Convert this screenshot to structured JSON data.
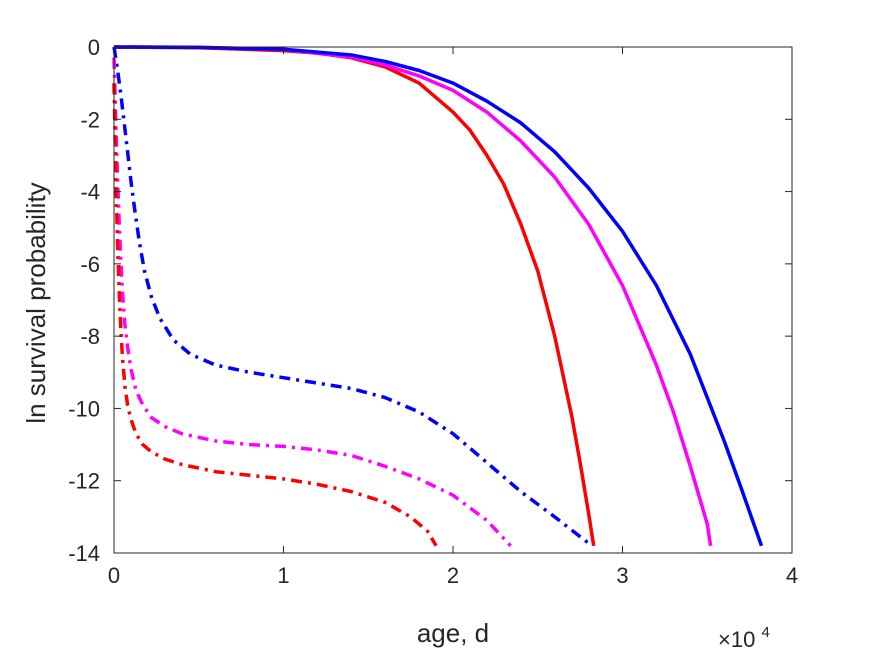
{
  "chart_data": {
    "type": "line",
    "xlabel": "age, d",
    "ylabel": "ln survival probability",
    "x_multiplier_label": "×10",
    "x_multiplier_exponent": "4",
    "xlim": [
      0,
      40000
    ],
    "ylim": [
      -14,
      0
    ],
    "xticks": [
      0,
      10000,
      20000,
      30000,
      40000
    ],
    "xtick_labels": [
      "0",
      "1",
      "2",
      "3",
      "4"
    ],
    "yticks": [
      0,
      -2,
      -4,
      -6,
      -8,
      -10,
      -12,
      -14
    ],
    "ytick_labels": [
      "0",
      "-2",
      "-4",
      "-6",
      "-8",
      "-10",
      "-12",
      "-14"
    ],
    "grid": false,
    "series": [
      {
        "color": "#ff0000",
        "style": "solid",
        "points": [
          [
            0,
            0
          ],
          [
            5000,
            -0.02
          ],
          [
            10000,
            -0.1
          ],
          [
            12000,
            -0.17
          ],
          [
            14000,
            -0.3
          ],
          [
            16000,
            -0.55
          ],
          [
            18000,
            -1.0
          ],
          [
            20000,
            -1.8
          ],
          [
            21000,
            -2.3
          ],
          [
            22000,
            -3.0
          ],
          [
            23000,
            -3.8
          ],
          [
            24000,
            -4.9
          ],
          [
            25000,
            -6.2
          ],
          [
            26000,
            -8.0
          ],
          [
            27000,
            -10.2
          ],
          [
            27500,
            -11.5
          ],
          [
            28000,
            -12.9
          ],
          [
            28300,
            -13.8
          ]
        ]
      },
      {
        "color": "#ff00ff",
        "style": "solid",
        "points": [
          [
            0,
            0
          ],
          [
            5000,
            -0.01
          ],
          [
            10000,
            -0.07
          ],
          [
            14000,
            -0.28
          ],
          [
            16000,
            -0.5
          ],
          [
            18000,
            -0.8
          ],
          [
            20000,
            -1.2
          ],
          [
            22000,
            -1.8
          ],
          [
            24000,
            -2.6
          ],
          [
            26000,
            -3.6
          ],
          [
            28000,
            -4.9
          ],
          [
            30000,
            -6.6
          ],
          [
            32000,
            -8.8
          ],
          [
            33000,
            -10.1
          ],
          [
            34000,
            -11.6
          ],
          [
            35000,
            -13.2
          ],
          [
            35200,
            -13.8
          ]
        ]
      },
      {
        "color": "#0000ff",
        "style": "solid",
        "points": [
          [
            0,
            0
          ],
          [
            5000,
            -0.01
          ],
          [
            10000,
            -0.06
          ],
          [
            14000,
            -0.22
          ],
          [
            16000,
            -0.4
          ],
          [
            18000,
            -0.65
          ],
          [
            20000,
            -1.0
          ],
          [
            22000,
            -1.5
          ],
          [
            24000,
            -2.1
          ],
          [
            26000,
            -2.9
          ],
          [
            28000,
            -3.9
          ],
          [
            30000,
            -5.1
          ],
          [
            32000,
            -6.6
          ],
          [
            34000,
            -8.5
          ],
          [
            36000,
            -10.9
          ],
          [
            37000,
            -12.2
          ],
          [
            38200,
            -13.8
          ]
        ]
      },
      {
        "color": "#0000ff",
        "style": "dashdot",
        "points": [
          [
            0,
            0
          ],
          [
            200,
            -0.6
          ],
          [
            400,
            -1.3
          ],
          [
            600,
            -2.1
          ],
          [
            800,
            -2.9
          ],
          [
            1000,
            -3.7
          ],
          [
            1250,
            -4.6
          ],
          [
            1500,
            -5.4
          ],
          [
            1800,
            -6.2
          ],
          [
            2200,
            -6.9
          ],
          [
            2700,
            -7.5
          ],
          [
            3500,
            -8.1
          ],
          [
            4500,
            -8.5
          ],
          [
            6000,
            -8.8
          ],
          [
            8000,
            -9.0
          ],
          [
            10000,
            -9.15
          ],
          [
            12000,
            -9.3
          ],
          [
            14000,
            -9.45
          ],
          [
            16000,
            -9.7
          ],
          [
            18000,
            -10.1
          ],
          [
            20000,
            -10.7
          ],
          [
            22000,
            -11.5
          ],
          [
            24000,
            -12.3
          ],
          [
            26000,
            -13.0
          ],
          [
            28200,
            -13.8
          ]
        ]
      },
      {
        "color": "#ff00ff",
        "style": "dashdot",
        "points": [
          [
            0,
            -0.3
          ],
          [
            100,
            -2.0
          ],
          [
            200,
            -3.5
          ],
          [
            300,
            -4.8
          ],
          [
            400,
            -5.9
          ],
          [
            500,
            -6.8
          ],
          [
            650,
            -7.7
          ],
          [
            800,
            -8.3
          ],
          [
            1000,
            -8.9
          ],
          [
            1300,
            -9.5
          ],
          [
            1700,
            -9.9
          ],
          [
            2200,
            -10.25
          ],
          [
            3000,
            -10.5
          ],
          [
            4000,
            -10.7
          ],
          [
            6000,
            -10.9
          ],
          [
            8000,
            -11.0
          ],
          [
            10000,
            -11.05
          ],
          [
            12000,
            -11.15
          ],
          [
            14000,
            -11.3
          ],
          [
            16000,
            -11.6
          ],
          [
            18000,
            -11.95
          ],
          [
            20000,
            -12.4
          ],
          [
            22000,
            -13.1
          ],
          [
            23400,
            -13.8
          ]
        ]
      },
      {
        "color": "#ff0000",
        "style": "dashdot",
        "points": [
          [
            0,
            -1.0
          ],
          [
            100,
            -3.5
          ],
          [
            200,
            -5.3
          ],
          [
            300,
            -6.7
          ],
          [
            400,
            -7.8
          ],
          [
            500,
            -8.6
          ],
          [
            650,
            -9.4
          ],
          [
            800,
            -9.9
          ],
          [
            1000,
            -10.3
          ],
          [
            1300,
            -10.7
          ],
          [
            1700,
            -11.0
          ],
          [
            2200,
            -11.2
          ],
          [
            3000,
            -11.4
          ],
          [
            4000,
            -11.55
          ],
          [
            6000,
            -11.75
          ],
          [
            8000,
            -11.85
          ],
          [
            10000,
            -11.95
          ],
          [
            12000,
            -12.1
          ],
          [
            14000,
            -12.3
          ],
          [
            16000,
            -12.6
          ],
          [
            17500,
            -13.0
          ],
          [
            18500,
            -13.4
          ],
          [
            19000,
            -13.8
          ]
        ]
      }
    ]
  }
}
